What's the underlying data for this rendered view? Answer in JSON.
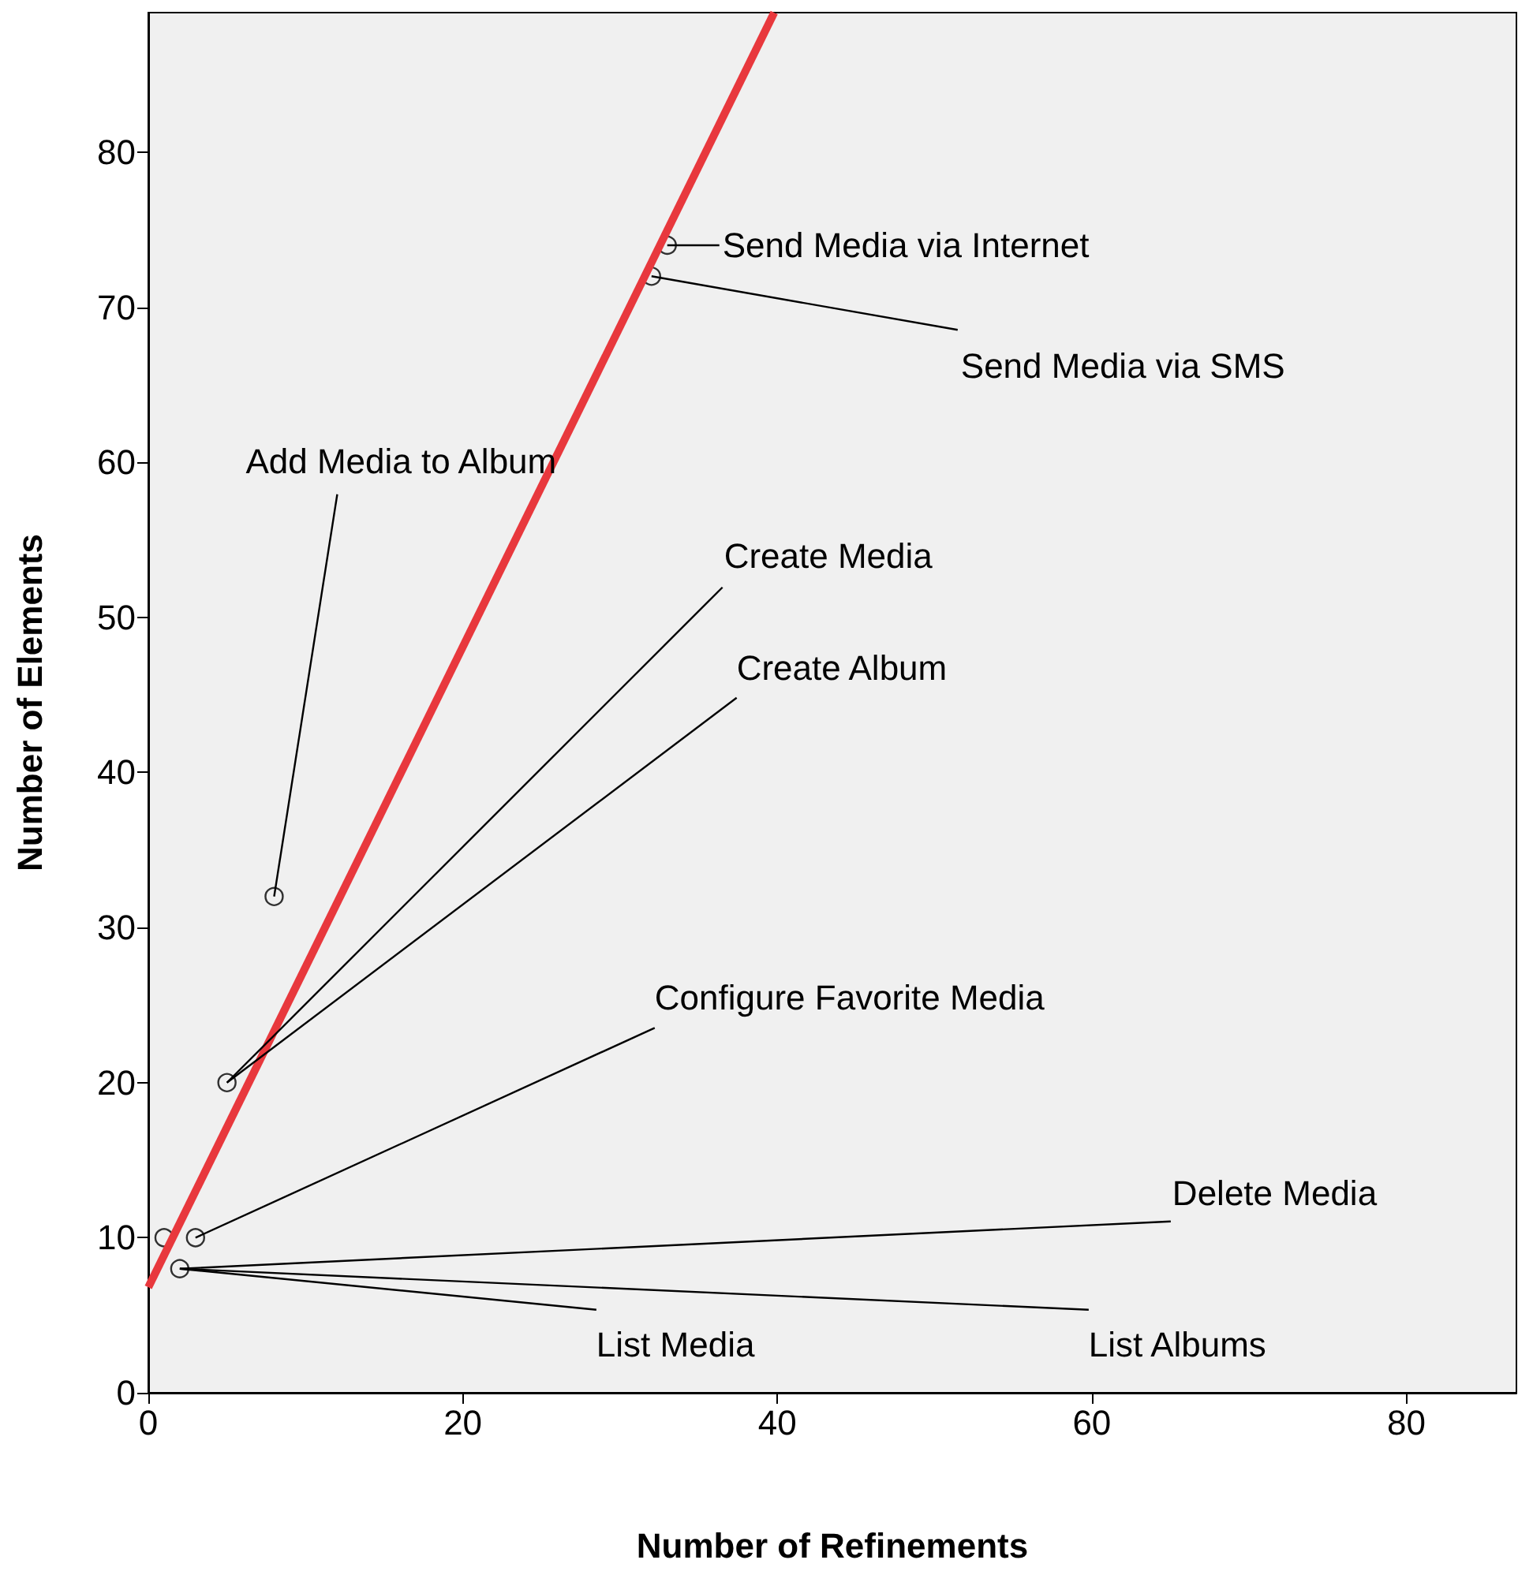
{
  "chart_data": {
    "type": "scatter",
    "xlabel": "Number of Refinements",
    "ylabel": "Number of Elements",
    "xlim": [
      0,
      87
    ],
    "ylim": [
      0,
      89
    ],
    "xticks": [
      0,
      20,
      40,
      60,
      80
    ],
    "yticks": [
      0,
      10,
      20,
      30,
      40,
      50,
      60,
      70,
      80
    ],
    "grid": false,
    "series": [
      {
        "marker": "circle",
        "color": "#000000",
        "x": [
          33,
          32,
          8,
          5,
          3,
          1,
          2
        ],
        "values": [
          74,
          72,
          32,
          20,
          10,
          10,
          8
        ]
      },
      {
        "type": "line",
        "marker": "none",
        "color": "#e8383d",
        "x": [
          0,
          39.8
        ],
        "values": [
          6.8,
          89
        ]
      }
    ],
    "annotations": [
      {
        "text": "Send Media via Internet",
        "x": 33,
        "y": 74
      },
      {
        "text": "Send Media via SMS",
        "x": 32,
        "y": 72
      },
      {
        "text": "Add Media to Album",
        "x": 8,
        "y": 32
      },
      {
        "text": "Create Media",
        "x": 5,
        "y": 20
      },
      {
        "text": "Create Album",
        "x": 5,
        "y": 20
      },
      {
        "text": "Configure Favorite Media",
        "x": 3,
        "y": 10
      },
      {
        "text": "Delete Media",
        "x": 2,
        "y": 8
      },
      {
        "text": "List Media",
        "x": 2,
        "y": 8
      },
      {
        "text": "List Albums",
        "x": 2,
        "y": 8
      }
    ]
  }
}
